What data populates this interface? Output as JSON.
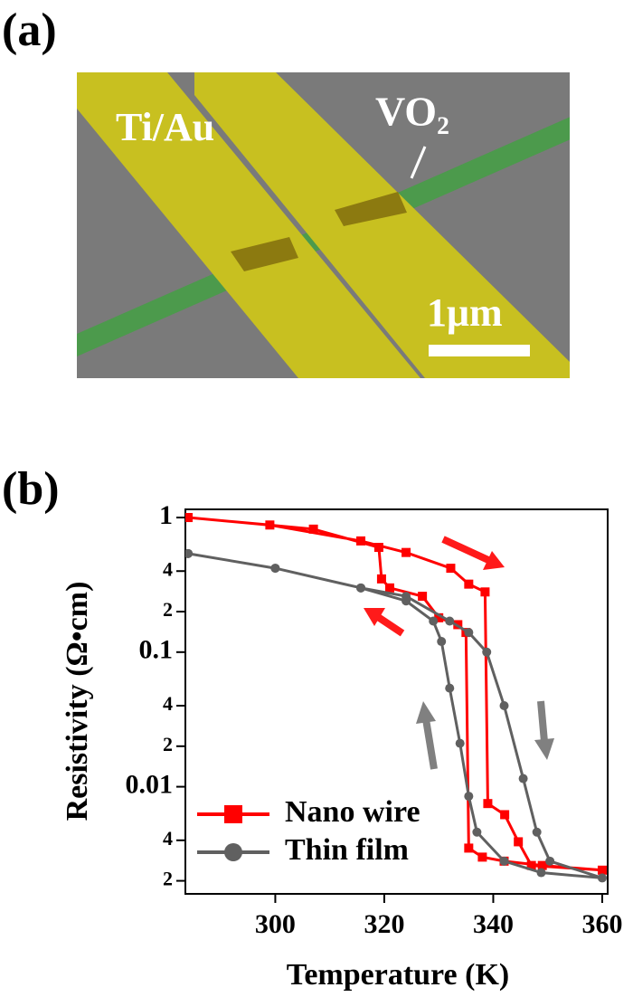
{
  "panel_a": {
    "label": "(a)",
    "annotations": [
      "Ti/Au",
      "VO₂",
      "1μm"
    ]
  },
  "chart_data": {
    "type": "line",
    "panel_label": "(b)",
    "x_label": "Temperature (K)",
    "y_label": "Resistivity (Ω•cm)",
    "log_y": true,
    "legend": "lower left",
    "xlim": [
      283.5,
      361
    ],
    "ylim": [
      0.0016,
      1.15
    ],
    "xticks": [
      300,
      320,
      340,
      360
    ],
    "yticks": [
      {
        "value": 0.002,
        "label": "2"
      },
      {
        "value": 0.004,
        "label": "4"
      },
      0.01,
      {
        "value": 0.02,
        "label": "2"
      },
      {
        "value": 0.04,
        "label": "4"
      },
      0.1,
      {
        "value": 0.2,
        "label": "2"
      },
      {
        "value": 0.4,
        "label": "4"
      },
      1
    ],
    "series": [
      {
        "name": "Nano wire",
        "color": "#ff0000",
        "marker": "square",
        "x": [
          284,
          299,
          315.7,
          324,
          332.2,
          335.5,
          338.5,
          339,
          342.1,
          344.6,
          347,
          360,
          349,
          342,
          338,
          335.5,
          335,
          333.5,
          330,
          327,
          321,
          319.5,
          319,
          307,
          284
        ],
        "values": [
          1.0,
          0.88,
          0.67,
          0.55,
          0.42,
          0.32,
          0.28,
          0.0075,
          0.0062,
          0.0039,
          0.0026,
          0.0024,
          0.0026,
          0.0028,
          0.003,
          0.0035,
          0.14,
          0.16,
          0.18,
          0.26,
          0.3,
          0.35,
          0.6,
          0.82,
          1.0
        ]
      },
      {
        "name": "Thin film",
        "color": "#606060",
        "marker": "circle",
        "x": [
          284,
          300,
          315.7,
          324,
          332,
          335.5,
          338.8,
          342,
          345.5,
          348,
          350.4,
          360,
          348.8,
          342,
          337,
          335.5,
          333.9,
          332,
          330.5,
          329,
          324,
          315.7,
          300,
          284
        ],
        "values": [
          0.54,
          0.42,
          0.3,
          0.26,
          0.17,
          0.14,
          0.1,
          0.04,
          0.0115,
          0.0046,
          0.0028,
          0.0021,
          0.0023,
          0.0028,
          0.0046,
          0.0085,
          0.021,
          0.054,
          0.12,
          0.17,
          0.24,
          0.3,
          0.42,
          0.54
        ]
      }
    ]
  }
}
